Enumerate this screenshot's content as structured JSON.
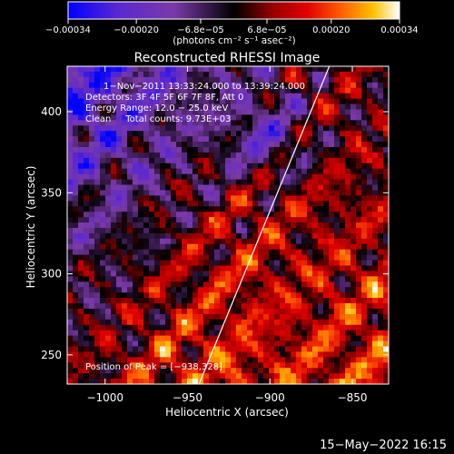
{
  "chart_data": {
    "type": "heatmap",
    "title": "Reconstructed RHESSI Image",
    "xlabel": "Heliocentric X (arcsec)",
    "ylabel": "Heliocentric Y (arcsec)",
    "xlim": [
      -1023,
      -828
    ],
    "ylim": [
      232,
      428
    ],
    "x_ticks": [
      -1000,
      -950,
      -900,
      -850
    ],
    "x_tick_labels": [
      "−1000",
      "−950",
      "−900",
      "−850"
    ],
    "y_ticks": [
      250,
      300,
      350,
      400
    ],
    "y_tick_labels": [
      "250",
      "300",
      "350",
      "400"
    ],
    "colorbar": {
      "range": [
        -0.00034,
        0.00034
      ],
      "ticks": [
        -0.00034,
        -0.0002,
        -6.8e-05,
        6.8e-05,
        0.0002,
        0.00034
      ],
      "tick_labels": [
        "−0.00034",
        "−0.00020",
        "−6.8e−05",
        "6.8e−05",
        "0.00020",
        "0.00034"
      ],
      "unit_label": "(photons cm⁻² s⁻¹ asec⁻²)",
      "colors": [
        "#0000ff",
        "#6a2fc0",
        "#7030a0",
        "#000000",
        "#a00000",
        "#e00000",
        "#ff5500",
        "#ffb000",
        "#ffffff"
      ]
    },
    "annotations": {
      "time_range": "1−Nov−2011 13:33:24.000 to 13:39:24.000",
      "detectors": "Detectors: 3F 4F 5F 6F 7F 8F, Att 0",
      "energy": "Energy Range: 12.0 − 25.0 keV",
      "clean": "Clean     Total counts: 9.73E+03",
      "peak": "Position of Peak = [−938,328]"
    },
    "limb_line": [
      [
        -943,
        232
      ],
      [
        -864,
        428
      ]
    ],
    "grid": false,
    "description_pattern": "bright emission concentrated along lower-left and right, purple/blue negative background in upper-left"
  },
  "footer": {
    "timestamp": "15−May−2022 16:15"
  }
}
